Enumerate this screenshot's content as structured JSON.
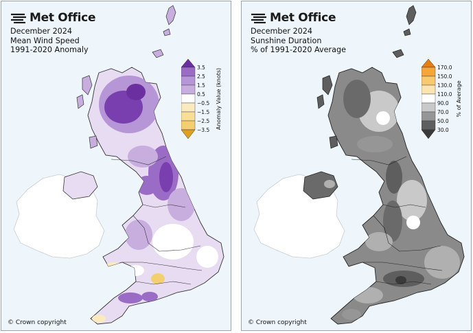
{
  "brand": "Met Office",
  "copyright": "© Crown copyright",
  "left_map": {
    "title_lines": [
      "December 2024",
      "Mean Wind Speed",
      "1991-2020 Anomaly"
    ],
    "legend": {
      "label": "Anomaly Value (knots)",
      "ticks": [
        "3.5",
        "2.5",
        "1.5",
        "0.5",
        "−0.5",
        "−1.5",
        "−2.5",
        "−3.5"
      ],
      "colors": [
        "#6b2fa0",
        "#9b6cc6",
        "#c8aedf",
        "#e5d8ef",
        "#ffffff",
        "#fbe9bf",
        "#f4cf70",
        "#e0a11c"
      ]
    }
  },
  "right_map": {
    "title_lines": [
      "December 2024",
      "Sunshine Duration",
      "% of 1991-2020 Average"
    ],
    "legend": {
      "label": "% of Average",
      "ticks": [
        "170.0",
        "150.0",
        "130.0",
        "110.0",
        "90.0",
        "70.0",
        "50.0",
        "30.0"
      ],
      "colors": [
        "#e57e12",
        "#f3a63a",
        "#f8c96e",
        "#fbe4b0",
        "#ffffff",
        "#c9c9c9",
        "#969696",
        "#5e5e5e",
        "#3a3a3a"
      ]
    }
  }
}
